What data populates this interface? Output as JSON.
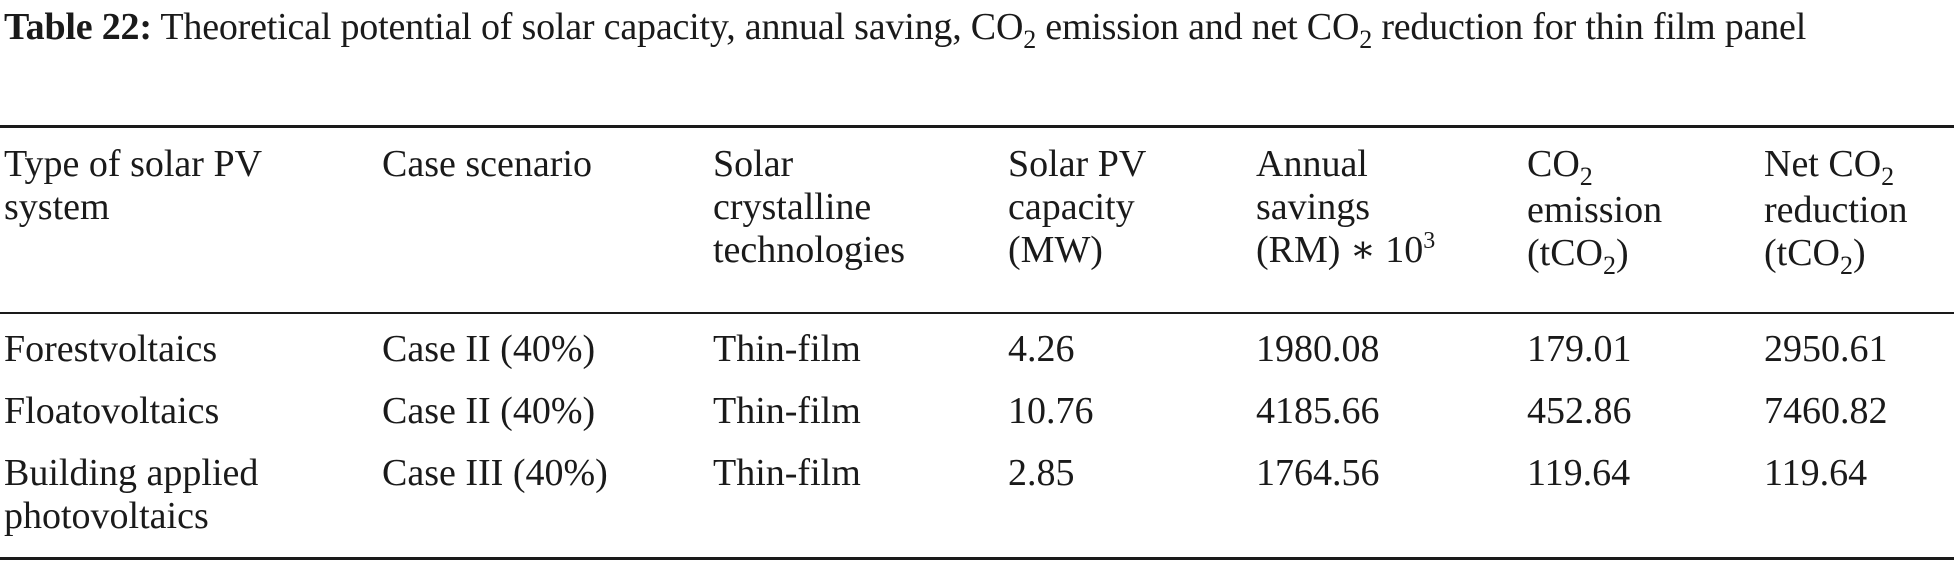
{
  "caption": {
    "label": "Table 22:",
    "text_a": " Theoretical potential of solar capacity, annual saving, CO",
    "sub_a": "2",
    "text_b": " emission and net CO",
    "sub_b": "2",
    "text_c": " reduction for thin film panel"
  },
  "headers": {
    "h1": [
      "Type of solar PV",
      "system"
    ],
    "h2": [
      "Case scenario"
    ],
    "h3": [
      "Solar",
      "crystalline",
      "technologies"
    ],
    "h4": [
      "Solar PV",
      "capacity",
      "(MW)"
    ],
    "h5": [
      "Annual",
      "savings",
      "(RM) ∗ 10",
      "3"
    ],
    "h6": [
      "CO",
      "2",
      "emission",
      "(tCO",
      "2",
      ")"
    ],
    "h7": [
      "Net CO",
      "2",
      "reduction",
      "(tCO",
      "2",
      ")"
    ]
  },
  "rows": [
    {
      "type": [
        "Forestvoltaics"
      ],
      "scenario": "Case II (40%)",
      "technology": "Thin-film",
      "capacity": "4.26",
      "savings": "1980.08",
      "emission": "179.01",
      "reduction": "2950.61"
    },
    {
      "type": [
        "Floatovoltaics"
      ],
      "scenario": "Case II (40%)",
      "technology": "Thin-film",
      "capacity": "10.76",
      "savings": "4185.66",
      "emission": "452.86",
      "reduction": "7460.82"
    },
    {
      "type": [
        "Building applied",
        "photovoltaics"
      ],
      "scenario": "Case III (40%)",
      "technology": "Thin-film",
      "capacity": "2.85",
      "savings": "1764.56",
      "emission": "119.64",
      "reduction": "119.64"
    }
  ]
}
